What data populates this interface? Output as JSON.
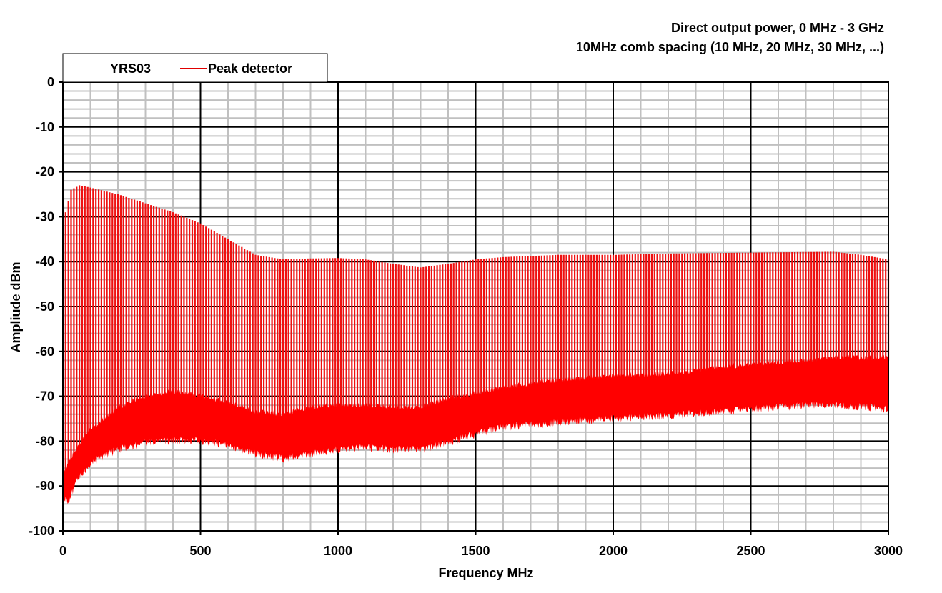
{
  "chart_data": {
    "type": "line",
    "title": [
      "Direct output power, 0 MHz - 3 GHz",
      "10MHz comb spacing (10 MHz, 20 MHz, 30 MHz, ...)"
    ],
    "xlabel": "Frequency  MHz",
    "ylabel": "Ampliude  dBm",
    "xlim": [
      0,
      3000
    ],
    "ylim": [
      -100,
      0
    ],
    "xticks": [
      0,
      500,
      1000,
      1500,
      2000,
      2500,
      3000
    ],
    "yticks": [
      0,
      -10,
      -20,
      -30,
      -40,
      -50,
      -60,
      -70,
      -80,
      -90,
      -100
    ],
    "x_minor_step": 100,
    "y_minor_step": 2,
    "grid": true,
    "legend": {
      "placement": "top-left",
      "title": "YRS03",
      "entries": [
        "Peak detector"
      ]
    },
    "series": [
      {
        "name": "Peak detector",
        "color": "#ff0000",
        "comb_spacing_mhz": 10,
        "peak_envelope": {
          "x": [
            10,
            30,
            60,
            100,
            200,
            300,
            400,
            500,
            600,
            700,
            800,
            900,
            1000,
            1100,
            1200,
            1300,
            1400,
            1500,
            1600,
            1800,
            2000,
            2200,
            2500,
            2800,
            2900,
            3000
          ],
          "y": [
            -29,
            -24,
            -23,
            -23.5,
            -25,
            -27,
            -29,
            -31.5,
            -35,
            -38.5,
            -39.5,
            -39.3,
            -39.2,
            -39.5,
            -40.5,
            -41.3,
            -40.5,
            -39.5,
            -39,
            -38.5,
            -38.5,
            -38.2,
            -38,
            -37.8,
            -38.5,
            -39.5
          ]
        },
        "floor_upper": {
          "x": [
            0,
            50,
            100,
            200,
            300,
            400,
            500,
            600,
            700,
            800,
            900,
            1000,
            1100,
            1200,
            1300,
            1400,
            1500,
            1600,
            1800,
            2000,
            2200,
            2400,
            2600,
            2800,
            3000
          ],
          "y": [
            -88,
            -82,
            -78,
            -73,
            -70.5,
            -69.5,
            -70.5,
            -72,
            -74,
            -74.5,
            -73,
            -72.5,
            -72.5,
            -73,
            -73,
            -71,
            -70,
            -68.5,
            -67,
            -66,
            -65.5,
            -64,
            -63,
            -62,
            -62
          ]
        },
        "floor_lower": {
          "x": [
            0,
            20,
            50,
            100,
            200,
            300,
            400,
            500,
            600,
            700,
            800,
            900,
            1000,
            1100,
            1200,
            1300,
            1400,
            1500,
            1600,
            1800,
            2000,
            2200,
            2400,
            2600,
            2800,
            3000
          ],
          "y": [
            -92,
            -92.5,
            -88,
            -84,
            -81,
            -79.5,
            -79,
            -79,
            -80,
            -82,
            -83,
            -82,
            -81,
            -80.5,
            -81,
            -81,
            -79.5,
            -77.5,
            -76,
            -75,
            -74,
            -73.5,
            -72.5,
            -71.5,
            -71,
            -72
          ]
        }
      }
    ]
  }
}
